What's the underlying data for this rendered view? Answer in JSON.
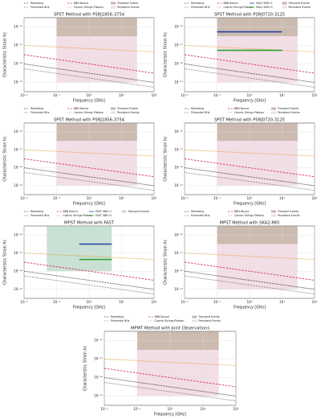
{
  "chart_data": [
    {
      "type": "line",
      "title": "SPST Method with PSRJ1856-3754",
      "x_label": "Frequency [GHz]",
      "y_label": "Characteristic Strain hc",
      "log_x": true,
      "log_y": true,
      "grid": true,
      "xlim": [
        0.01,
        100
      ],
      "xticks": [
        {
          "value": 0.01,
          "label": "10⁻²"
        },
        {
          "value": 0.1,
          "label": "10⁻¹"
        },
        {
          "value": 1,
          "label": "10⁰"
        },
        {
          "value": 10,
          "label": "10¹"
        },
        {
          "value": 100,
          "label": "10²"
        }
      ],
      "ylim": [
        1e-22,
        1e-14
      ],
      "yticks": [
        {
          "value": 1e-15,
          "label": "10⁻¹⁵"
        },
        {
          "value": 1e-17,
          "label": "10⁻¹⁷"
        },
        {
          "value": 1e-19,
          "label": "10⁻¹⁹"
        },
        {
          "value": 1e-21,
          "label": "10⁻²¹"
        }
      ],
      "regions": [
        {
          "name": "Transient Events",
          "color": "#a08470",
          "x": [
            0.1,
            30
          ],
          "y": [
            1e-16,
            1e-14
          ]
        },
        {
          "name": "Persistent Events",
          "color": "#e8c3d3",
          "x": [
            0.1,
            30
          ],
          "y": [
            1e-21,
            1e-16
          ]
        }
      ],
      "series": [
        {
          "name": "Reheating",
          "color": "#000000",
          "dash": "dotted",
          "x": [
            0.01,
            100
          ],
          "values": [
            1e-19,
            1e-21
          ]
        },
        {
          "name": "Primordial BHs",
          "color": "#555555",
          "dash": "dotted",
          "x": [
            0.01,
            100
          ],
          "values": [
            3e-20,
            3e-22
          ]
        },
        {
          "name": "BBN Bound",
          "color": "#d6336c",
          "dash": "dashed",
          "x": [
            0.01,
            100
          ],
          "values": [
            1e-18,
            1e-20
          ]
        },
        {
          "name": "Cosmic Strings Plateau",
          "color": "#e08a00",
          "dash": "dotted",
          "x": [
            0.01,
            100
          ],
          "values": [
            1e-17,
            2e-18
          ]
        }
      ]
    },
    {
      "type": "line",
      "title": "SPST Method with PSRJ0720-3125",
      "x_label": "Frequency [GHz]",
      "y_label": "Characteristic Strain hc",
      "log_x": true,
      "log_y": true,
      "grid": true,
      "xlim": [
        0.01,
        100
      ],
      "xticks": [
        {
          "value": 0.01,
          "label": "10⁻²"
        },
        {
          "value": 0.1,
          "label": "10⁻¹"
        },
        {
          "value": 1,
          "label": "10⁰"
        },
        {
          "value": 10,
          "label": "10¹"
        },
        {
          "value": 100,
          "label": "10²"
        }
      ],
      "ylim": [
        1e-22,
        1e-14
      ],
      "yticks": [
        {
          "value": 1e-15,
          "label": "10⁻¹⁵"
        },
        {
          "value": 1e-17,
          "label": "10⁻¹⁷"
        },
        {
          "value": 1e-19,
          "label": "10⁻¹⁹"
        },
        {
          "value": 1e-21,
          "label": "10⁻²¹"
        }
      ],
      "regions": [
        {
          "name": "Transient Events",
          "color": "#a08470",
          "x": [
            0.1,
            30
          ],
          "y": [
            1e-16,
            1e-14
          ]
        },
        {
          "name": "Persistent Events",
          "color": "#e8c3d3",
          "x": [
            0.1,
            30
          ],
          "y": [
            1e-21,
            1e-16
          ]
        }
      ],
      "series": [
        {
          "name": "Reheating",
          "color": "#000000",
          "dash": "dotted",
          "x": [
            0.01,
            100
          ],
          "values": [
            1e-19,
            1e-21
          ]
        },
        {
          "name": "Primordial BHs",
          "color": "#555555",
          "dash": "dotted",
          "x": [
            0.01,
            100
          ],
          "values": [
            3e-20,
            3e-22
          ]
        },
        {
          "name": "BBN Bound",
          "color": "#d6336c",
          "dash": "dashed",
          "x": [
            0.01,
            100
          ],
          "values": [
            1e-18,
            1e-20
          ]
        },
        {
          "name": "Cosmic Strings Plateau",
          "color": "#e08a00",
          "dash": "dotted",
          "x": [
            0.01,
            100
          ],
          "values": [
            1e-17,
            2e-18
          ]
        },
        {
          "name": "SKA2 SNR=1",
          "color": "#2a3fa0",
          "dash": "solid",
          "x": [
            0.1,
            10
          ],
          "values": [
            3e-16,
            3e-16
          ]
        },
        {
          "name": "SKA2 SNR=5",
          "color": "#2ca02c",
          "dash": "solid",
          "x": [
            0.1,
            10
          ],
          "values": [
            3e-18,
            3e-18
          ]
        }
      ]
    },
    {
      "type": "line",
      "title": "SPST Method with PSRJ1856-3754",
      "x_label": "Frequency [GHz]",
      "y_label": "Characteristic Strain hc",
      "log_x": true,
      "log_y": true,
      "grid": true,
      "xlim": [
        0.01,
        100
      ],
      "xticks": [
        {
          "value": 0.01,
          "label": "10⁻²"
        },
        {
          "value": 0.1,
          "label": "10⁻¹"
        },
        {
          "value": 1,
          "label": "10⁰"
        },
        {
          "value": 10,
          "label": "10¹"
        },
        {
          "value": 100,
          "label": "10²"
        }
      ],
      "ylim": [
        1e-22,
        1e-14
      ],
      "yticks": [
        {
          "value": 1e-15,
          "label": "10⁻¹⁵"
        },
        {
          "value": 1e-17,
          "label": "10⁻¹⁷"
        },
        {
          "value": 1e-19,
          "label": "10⁻¹⁹"
        },
        {
          "value": 1e-21,
          "label": "10⁻²¹"
        }
      ],
      "regions": [
        {
          "name": "Transient Events",
          "color": "#a08470",
          "x": [
            0.1,
            30
          ],
          "y": [
            1e-16,
            1e-14
          ]
        },
        {
          "name": "Persistent Events",
          "color": "#e8c3d3",
          "x": [
            0.1,
            30
          ],
          "y": [
            1e-21,
            1e-16
          ]
        }
      ],
      "series": [
        {
          "name": "Reheating",
          "color": "#000000",
          "dash": "dotted",
          "x": [
            0.01,
            100
          ],
          "values": [
            1e-19,
            1e-21
          ]
        },
        {
          "name": "Primordial BHs",
          "color": "#555555",
          "dash": "dotted",
          "x": [
            0.01,
            100
          ],
          "values": [
            3e-20,
            3e-22
          ]
        },
        {
          "name": "BBN Bound",
          "color": "#d6336c",
          "dash": "dashed",
          "x": [
            0.01,
            100
          ],
          "values": [
            1e-18,
            1e-20
          ]
        },
        {
          "name": "Cosmic Strings Plateau",
          "color": "#e08a00",
          "dash": "dotted",
          "x": [
            0.01,
            100
          ],
          "values": [
            1e-17,
            2e-18
          ]
        }
      ]
    },
    {
      "type": "line",
      "title": "SPST Method with PSRJ0720-3125",
      "x_label": "Frequency [GHz]",
      "y_label": "Characteristic Strain hc",
      "log_x": true,
      "log_y": true,
      "grid": true,
      "xlim": [
        0.01,
        100
      ],
      "xticks": [
        {
          "value": 0.01,
          "label": "10⁻²"
        },
        {
          "value": 0.1,
          "label": "10⁻¹"
        },
        {
          "value": 1,
          "label": "10⁰"
        },
        {
          "value": 10,
          "label": "10¹"
        },
        {
          "value": 100,
          "label": "10²"
        }
      ],
      "ylim": [
        1e-22,
        1e-14
      ],
      "yticks": [
        {
          "value": 1e-15,
          "label": "10⁻¹⁵"
        },
        {
          "value": 1e-17,
          "label": "10⁻¹⁷"
        },
        {
          "value": 1e-19,
          "label": "10⁻¹⁹"
        },
        {
          "value": 1e-21,
          "label": "10⁻²¹"
        }
      ],
      "regions": [
        {
          "name": "Transient Events",
          "color": "#a08470",
          "x": [
            0.1,
            30
          ],
          "y": [
            1e-16,
            1e-14
          ]
        },
        {
          "name": "Persistent Events",
          "color": "#e8c3d3",
          "x": [
            0.1,
            30
          ],
          "y": [
            1e-21,
            1e-16
          ]
        }
      ],
      "series": [
        {
          "name": "Reheating",
          "color": "#000000",
          "dash": "dotted",
          "x": [
            0.01,
            100
          ],
          "values": [
            1e-19,
            1e-21
          ]
        },
        {
          "name": "Primordial BHs",
          "color": "#555555",
          "dash": "dotted",
          "x": [
            0.01,
            100
          ],
          "values": [
            3e-20,
            3e-22
          ]
        },
        {
          "name": "BBN Bound",
          "color": "#d6336c",
          "dash": "dashed",
          "x": [
            0.01,
            100
          ],
          "values": [
            1e-18,
            1e-20
          ]
        },
        {
          "name": "Cosmic Strings Plateau",
          "color": "#e08a00",
          "dash": "dotted",
          "x": [
            0.01,
            100
          ],
          "values": [
            1e-17,
            2e-18
          ]
        }
      ]
    },
    {
      "type": "line",
      "title": "MPST Method with FAST",
      "x_label": "Frequency [GHz]",
      "y_label": "Characteristic Strain hc",
      "log_x": true,
      "log_y": true,
      "grid": true,
      "xlim": [
        0.01,
        100
      ],
      "xticks": [
        {
          "value": 0.01,
          "label": "10⁻²"
        },
        {
          "value": 0.1,
          "label": "10⁻¹"
        },
        {
          "value": 1,
          "label": "10⁰"
        },
        {
          "value": 10,
          "label": "10¹"
        },
        {
          "value": 100,
          "label": "10²"
        }
      ],
      "ylim": [
        1e-22,
        1e-14
      ],
      "yticks": [
        {
          "value": 1e-15,
          "label": "10⁻¹⁵"
        },
        {
          "value": 1e-17,
          "label": "10⁻¹⁷"
        },
        {
          "value": 1e-19,
          "label": "10⁻¹⁹"
        },
        {
          "value": 1e-21,
          "label": "10⁻²¹"
        }
      ],
      "regions": [
        {
          "name": "Transient Events",
          "color": "#9cc7b0",
          "x": [
            0.05,
            5
          ],
          "y": [
            1e-19,
            1e-14
          ]
        }
      ],
      "series": [
        {
          "name": "Reheating",
          "color": "#000000",
          "dash": "dotted",
          "x": [
            0.01,
            100
          ],
          "values": [
            1e-19,
            1e-21
          ]
        },
        {
          "name": "Primordial BHs",
          "color": "#555555",
          "dash": "dotted",
          "x": [
            0.01,
            100
          ],
          "values": [
            3e-20,
            3e-22
          ]
        },
        {
          "name": "BBN Bound",
          "color": "#d6336c",
          "dash": "dashed",
          "x": [
            0.01,
            100
          ],
          "values": [
            1e-18,
            1e-20
          ]
        },
        {
          "name": "Cosmic Strings Plateau",
          "color": "#e08a00",
          "dash": "dotted",
          "x": [
            0.01,
            100
          ],
          "values": [
            1e-17,
            2e-18
          ]
        },
        {
          "name": "FAST SNR=1",
          "color": "#2a3fa0",
          "dash": "solid",
          "x": [
            0.5,
            5
          ],
          "values": [
            1e-16,
            1e-16
          ]
        },
        {
          "name": "FAST SNR=5",
          "color": "#2ca02c",
          "dash": "solid",
          "x": [
            0.5,
            5
          ],
          "values": [
            2e-18,
            2e-18
          ]
        }
      ]
    },
    {
      "type": "line",
      "title": "MPST Method with SKA2-MID",
      "x_label": "Frequency [GHz]",
      "y_label": "Characteristic Strain hc",
      "log_x": true,
      "log_y": true,
      "grid": true,
      "xlim": [
        0.01,
        100
      ],
      "xticks": [
        {
          "value": 0.01,
          "label": "10⁻²"
        },
        {
          "value": 0.1,
          "label": "10⁻¹"
        },
        {
          "value": 1,
          "label": "10⁰"
        },
        {
          "value": 10,
          "label": "10¹"
        },
        {
          "value": 100,
          "label": "10²"
        }
      ],
      "ylim": [
        1e-22,
        1e-14
      ],
      "yticks": [
        {
          "value": 1e-15,
          "label": "10⁻¹⁵"
        },
        {
          "value": 1e-17,
          "label": "10⁻¹⁷"
        },
        {
          "value": 1e-19,
          "label": "10⁻¹⁹"
        },
        {
          "value": 1e-21,
          "label": "10⁻²¹"
        }
      ],
      "regions": [
        {
          "name": "Transient Events",
          "color": "#a08470",
          "x": [
            0.1,
            30
          ],
          "y": [
            1e-16,
            1e-14
          ]
        },
        {
          "name": "Persistent Events",
          "color": "#e8c3d3",
          "x": [
            0.1,
            30
          ],
          "y": [
            1e-21,
            1e-16
          ]
        }
      ],
      "series": [
        {
          "name": "Reheating",
          "color": "#000000",
          "dash": "dotted",
          "x": [
            0.01,
            100
          ],
          "values": [
            1e-19,
            1e-21
          ]
        },
        {
          "name": "Primordial BHs",
          "color": "#555555",
          "dash": "dotted",
          "x": [
            0.01,
            100
          ],
          "values": [
            3e-20,
            3e-22
          ]
        },
        {
          "name": "BBN Bound",
          "color": "#d6336c",
          "dash": "dashed",
          "x": [
            0.01,
            100
          ],
          "values": [
            1e-18,
            1e-20
          ]
        },
        {
          "name": "Cosmic Strings Plateau",
          "color": "#e08a00",
          "dash": "dotted",
          "x": [
            0.01,
            100
          ],
          "values": [
            1e-17,
            2e-18
          ]
        }
      ]
    },
    {
      "type": "line",
      "title": "MPMT Method with Joint Observations",
      "x_label": "Frequency [GHz]",
      "y_label": "Characteristic Strain hc",
      "log_x": true,
      "log_y": true,
      "grid": true,
      "xlim": [
        0.01,
        100
      ],
      "xticks": [
        {
          "value": 0.01,
          "label": "10⁻²"
        },
        {
          "value": 0.1,
          "label": "10⁻¹"
        },
        {
          "value": 1,
          "label": "10⁰"
        },
        {
          "value": 10,
          "label": "10¹"
        },
        {
          "value": 100,
          "label": "10²"
        }
      ],
      "ylim": [
        1e-22,
        1e-14
      ],
      "yticks": [
        {
          "value": 1e-15,
          "label": "10⁻¹⁵"
        },
        {
          "value": 1e-17,
          "label": "10⁻¹⁷"
        },
        {
          "value": 1e-19,
          "label": "10⁻¹⁹"
        },
        {
          "value": 1e-21,
          "label": "10⁻²¹"
        }
      ],
      "regions": [
        {
          "name": "Transient Events",
          "color": "#a08470",
          "x": [
            0.1,
            30
          ],
          "y": [
            1e-16,
            1e-14
          ]
        },
        {
          "name": "Persistent Events",
          "color": "#e8c3d3",
          "x": [
            0.1,
            30
          ],
          "y": [
            1e-21,
            1e-16
          ]
        }
      ],
      "series": [
        {
          "name": "Reheating",
          "color": "#000000",
          "dash": "dotted",
          "x": [
            0.01,
            100
          ],
          "values": [
            1e-19,
            1e-21
          ]
        },
        {
          "name": "Primordial BHs",
          "color": "#555555",
          "dash": "dotted",
          "x": [
            0.01,
            100
          ],
          "values": [
            3e-20,
            3e-22
          ]
        },
        {
          "name": "BBN Bound",
          "color": "#d6336c",
          "dash": "dashed",
          "x": [
            0.01,
            100
          ],
          "values": [
            1e-18,
            1e-20
          ]
        },
        {
          "name": "Cosmic Strings Plateau",
          "color": "#e08a00",
          "dash": "dotted",
          "x": [
            0.01,
            100
          ],
          "values": [
            1e-17,
            2e-18
          ]
        }
      ]
    }
  ]
}
